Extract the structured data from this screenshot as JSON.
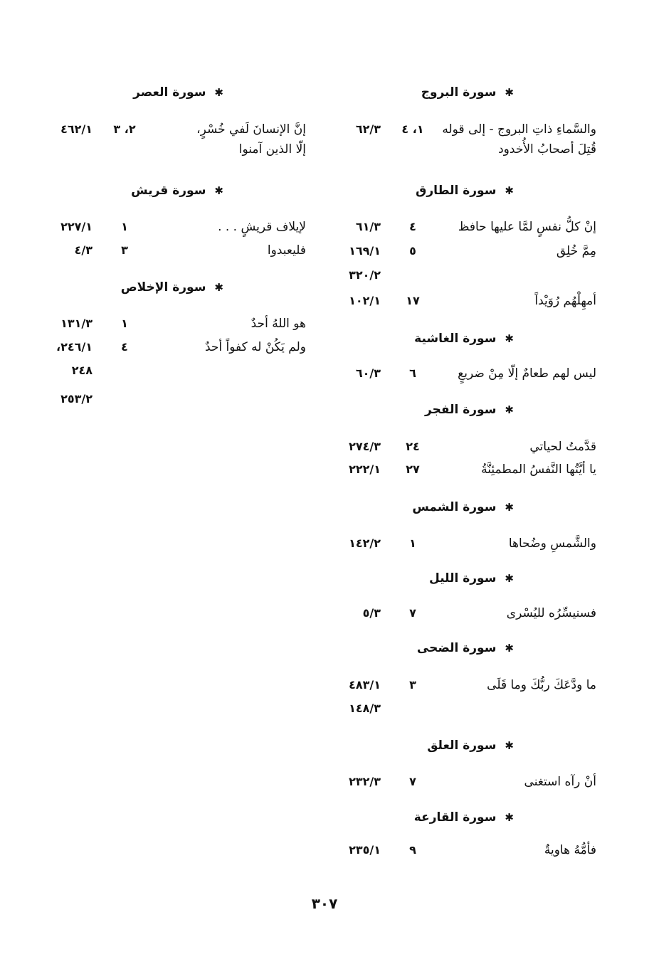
{
  "page_number": "٣٠٧",
  "columns": [
    {
      "sections": [
        {
          "title": "سورة البروج",
          "rows": [
            {
              "text": "والسَّماءِ ذاتِ البروج - إلى قوله",
              "verse": "١، ٤",
              "ref": "٦٢/٣"
            },
            {
              "text": "قُتِلَ أصحابُ الأُخدود",
              "verse": "",
              "ref": ""
            }
          ]
        },
        {
          "title": "سورة الطارق",
          "rows": [
            {
              "text": "إنْ كلُّ نفسٍ لمَّا عليها حافظ",
              "verse": "٤",
              "ref": "٦١/٣"
            },
            {
              "text": "مِمَّ خُلِق",
              "verse": "٥",
              "ref": "١٦٩/١"
            },
            {
              "text": "",
              "verse": "",
              "ref": "٣٢٠/٢"
            },
            {
              "text": "أمهِلْهُم رُوَيْداً",
              "verse": "١٧",
              "ref": "١٠٢/١"
            }
          ]
        },
        {
          "title": "سورة الغاشية",
          "rows": [
            {
              "text": "ليس لهم طعامٌ إلّا مِنْ ضريعٍ",
              "verse": "٦",
              "ref": "٦٠/٣"
            }
          ]
        },
        {
          "title": "سورة الفجر",
          "rows": [
            {
              "text": "قدَّمتُ لحياتي",
              "verse": "٢٤",
              "ref": "٢٧٤/٣"
            },
            {
              "text": "يا أيَّتُها النَّفسُ المطمئِنَّةُ",
              "verse": "٢٧",
              "ref": "٢٢٢/١"
            }
          ]
        },
        {
          "title": "سورة الشمس",
          "rows": [
            {
              "text": "والشَّمسِ وضُحاها",
              "verse": "١",
              "ref": "١٤٢/٢"
            }
          ]
        },
        {
          "title": "سورة الليل",
          "rows": [
            {
              "text": "فسنيسِّرُه لليُسْرى",
              "verse": "٧",
              "ref": "٥/٣"
            }
          ]
        },
        {
          "title": "سورة الضحى",
          "rows": [
            {
              "text": "ما ودَّعَكَ ربُّكَ وما قَلَى",
              "verse": "٣",
              "ref": "٤٨٣/١"
            },
            {
              "text": "",
              "verse": "",
              "ref": "١٤٨/٣"
            }
          ]
        },
        {
          "title": "سورة العلق",
          "rows": [
            {
              "text": "أنْ رآه استغنى",
              "verse": "٧",
              "ref": "٢٣٢/٣"
            }
          ]
        },
        {
          "title": "سورة القارعة",
          "rows": [
            {
              "text": "فأمُّهُ هاويةٌ",
              "verse": "٩",
              "ref": "٢٣٥/١"
            }
          ]
        }
      ]
    },
    {
      "sections": [
        {
          "title": "سورة العصر",
          "rows": [
            {
              "text": "إنَّ الإنسانَ لَفي خُسْرٍ،",
              "verse": "٢، ٣",
              "ref": "٤٦٢/١"
            },
            {
              "text": "إلّا الذين آمنوا",
              "verse": "",
              "ref": ""
            }
          ]
        },
        {
          "title": "سورة قريش",
          "rows": [
            {
              "text": "لإيلاف قريشٍ . . .",
              "verse": "١",
              "ref": "٢٢٧/١"
            },
            {
              "text": "فليعبدوا",
              "verse": "٣",
              "ref": "٤/٣"
            }
          ]
        },
        {
          "title": "سورة الإخلاص",
          "rows": [
            {
              "text": "هو اللهُ أحدٌ",
              "verse": "١",
              "ref": "١٣١/٣"
            },
            {
              "text": "ولم يَكُنْ له كفواً أحدٌ",
              "verse": "٤",
              "ref": "٢٤٦/١،"
            },
            {
              "text": "",
              "verse": "",
              "ref": "٢٤٨"
            },
            {
              "text": "",
              "verse": "",
              "ref": "٢٥٣/٢"
            }
          ]
        }
      ]
    }
  ]
}
